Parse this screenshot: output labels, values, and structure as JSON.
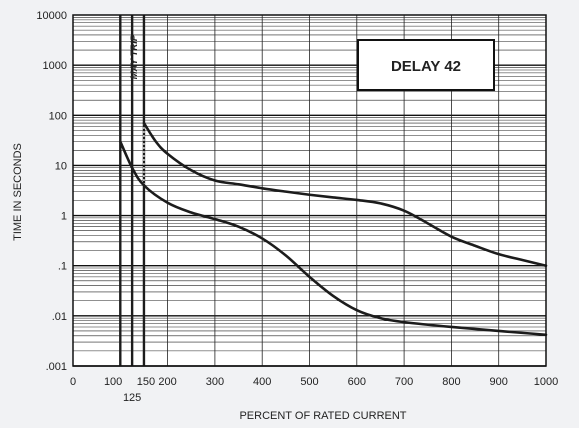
{
  "chart_data": {
    "type": "line",
    "title": "DELAY 42",
    "xlabel": "PERCENT OF RATED CURRENT",
    "ylabel": "TIME IN SECONDS",
    "annotation": "MAY TRIP",
    "xlim": [
      0,
      1000
    ],
    "ylim": [
      0.001,
      10000
    ],
    "yscale": "log",
    "grid": true,
    "xticks": [
      {
        "value": 0,
        "label": "0"
      },
      {
        "value": 100,
        "label": "100"
      },
      {
        "value": 150,
        "label": "150"
      },
      {
        "value": 200,
        "label": "200"
      },
      {
        "value": 300,
        "label": "300"
      },
      {
        "value": 400,
        "label": "400"
      },
      {
        "value": 500,
        "label": "500"
      },
      {
        "value": 600,
        "label": "600"
      },
      {
        "value": 700,
        "label": "700"
      },
      {
        "value": 800,
        "label": "800"
      },
      {
        "value": 900,
        "label": "900"
      },
      {
        "value": 1000,
        "label": "1000"
      }
    ],
    "xticks_secondary": [
      {
        "value": 125,
        "label": "125"
      }
    ],
    "yticks": [
      {
        "value": 10000,
        "label": "10000"
      },
      {
        "value": 1000,
        "label": "1000"
      },
      {
        "value": 100,
        "label": "100"
      },
      {
        "value": 10,
        "label": "10"
      },
      {
        "value": 1,
        "label": "1"
      },
      {
        "value": 0.1,
        "label": ".1"
      },
      {
        "value": 0.01,
        "label": ".01"
      },
      {
        "value": 0.001,
        "label": ".001"
      }
    ],
    "trip_boundaries": [
      100,
      125,
      150
    ],
    "series": [
      {
        "curve": "minimum",
        "x": [
          100,
          125,
          150,
          200,
          250,
          300,
          350,
          400,
          450,
          500,
          550,
          600,
          650,
          700,
          800,
          900,
          1000
        ],
        "y": [
          30,
          9,
          4,
          1.8,
          1.15,
          0.85,
          0.6,
          0.35,
          0.16,
          0.06,
          0.025,
          0.013,
          0.009,
          0.0075,
          0.006,
          0.005,
          0.0042
        ]
      },
      {
        "curve": "maximum",
        "x": [
          150,
          175,
          200,
          250,
          300,
          350,
          400,
          450,
          500,
          550,
          600,
          650,
          700,
          750,
          800,
          850,
          900,
          950,
          1000
        ],
        "y": [
          70,
          30,
          17,
          8,
          5,
          4.2,
          3.5,
          3,
          2.6,
          2.3,
          2.05,
          1.75,
          1.25,
          0.7,
          0.38,
          0.25,
          0.17,
          0.13,
          0.1
        ]
      }
    ],
    "colors": {
      "background": "#f1f2f4",
      "plot_background": "#ffffff",
      "grid_minor": "#222222",
      "grid_major": "#111111",
      "curve": "#1c1c1c"
    }
  }
}
